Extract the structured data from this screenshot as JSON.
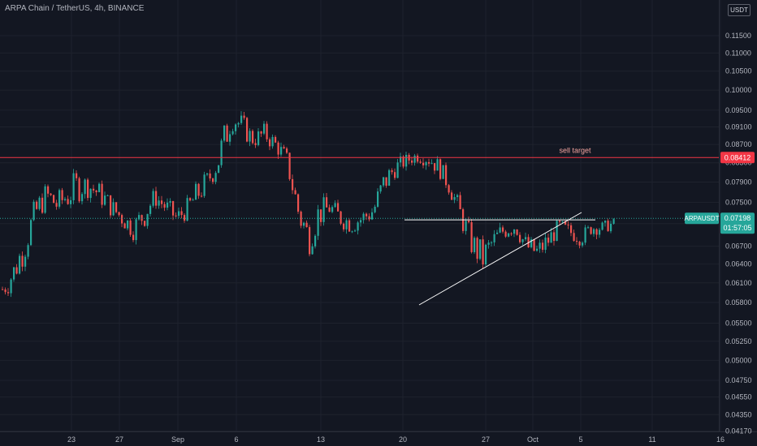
{
  "header": {
    "symbol_line": "ARPA Chain / TetherUS, 4h, BINANCE",
    "quote_unit": "USDT"
  },
  "chart_data": {
    "type": "candlestick",
    "title": "ARPA Chain / TetherUS, 4h, BINANCE",
    "yaxis_ticks": [
      "0.11500",
      "0.11000",
      "0.10500",
      "0.10000",
      "0.09500",
      "0.09100",
      "0.08700",
      "0.08300",
      "0.07900",
      "0.07500",
      "0.07100",
      "0.06700",
      "0.06400",
      "0.06100",
      "0.05800",
      "0.05500",
      "0.05250",
      "0.05000",
      "0.04750",
      "0.04550",
      "0.04350",
      "0.04170"
    ],
    "y_scale": "log",
    "xaxis_ticks": [
      "23",
      "27",
      "Sep",
      "6",
      "13",
      "20",
      "27",
      "Oct",
      "5",
      "11",
      "16"
    ],
    "ohlc_sample": {
      "note_free_points": [
        [
          0.058,
          0.062
        ],
        [
          0.06,
          0.065
        ],
        [
          0.064,
          0.07
        ],
        [
          0.07,
          0.076
        ],
        [
          0.074,
          0.079
        ],
        [
          0.072,
          0.077
        ],
        [
          0.073,
          0.08
        ],
        [
          0.075,
          0.082
        ],
        [
          0.076,
          0.08
        ],
        [
          0.074,
          0.079
        ],
        [
          0.072,
          0.076
        ],
        [
          0.07,
          0.074
        ],
        [
          0.068,
          0.072
        ],
        [
          0.07,
          0.076
        ],
        [
          0.074,
          0.078
        ],
        [
          0.072,
          0.076
        ],
        [
          0.07,
          0.074
        ],
        [
          0.072,
          0.076
        ],
        [
          0.074,
          0.08
        ],
        [
          0.078,
          0.082
        ],
        [
          0.08,
          0.09
        ],
        [
          0.09,
          0.097
        ],
        [
          0.088,
          0.094
        ],
        [
          0.086,
          0.09
        ],
        [
          0.087,
          0.092
        ],
        [
          0.085,
          0.089
        ],
        [
          0.082,
          0.086
        ],
        [
          0.07,
          0.078
        ],
        [
          0.065,
          0.072
        ],
        [
          0.07,
          0.076
        ],
        [
          0.072,
          0.076
        ],
        [
          0.07,
          0.074
        ],
        [
          0.069,
          0.073
        ],
        [
          0.07,
          0.074
        ],
        [
          0.071,
          0.076
        ],
        [
          0.076,
          0.082
        ],
        [
          0.08,
          0.084
        ],
        [
          0.082,
          0.085
        ],
        [
          0.083,
          0.086
        ],
        [
          0.082,
          0.086
        ],
        [
          0.08,
          0.084
        ],
        [
          0.076,
          0.08
        ],
        [
          0.07,
          0.075
        ],
        [
          0.065,
          0.07
        ],
        [
          0.062,
          0.068
        ],
        [
          0.066,
          0.07
        ],
        [
          0.068,
          0.072
        ],
        [
          0.069,
          0.072
        ],
        [
          0.065,
          0.069
        ],
        [
          0.064,
          0.068
        ],
        [
          0.066,
          0.07
        ],
        [
          0.069,
          0.072
        ],
        [
          0.068,
          0.071
        ],
        [
          0.067,
          0.07
        ],
        [
          0.069,
          0.0715
        ],
        [
          0.069,
          0.0715
        ],
        [
          0.07,
          0.072
        ]
      ]
    },
    "horizontal_line": {
      "label": "sell target",
      "price_label": "0.08412",
      "color": "#f23645"
    },
    "current_price": {
      "symbol": "ARPAUSDT",
      "price_label": "0.07198",
      "countdown": "01:57:05",
      "color": "#26a69a"
    },
    "triangle_top_price": 0.0717,
    "colors": {
      "up": "#26a69a",
      "down": "#ef5350",
      "background": "#131722",
      "grid": "#1e222d",
      "drawing": "#ffffff"
    }
  }
}
